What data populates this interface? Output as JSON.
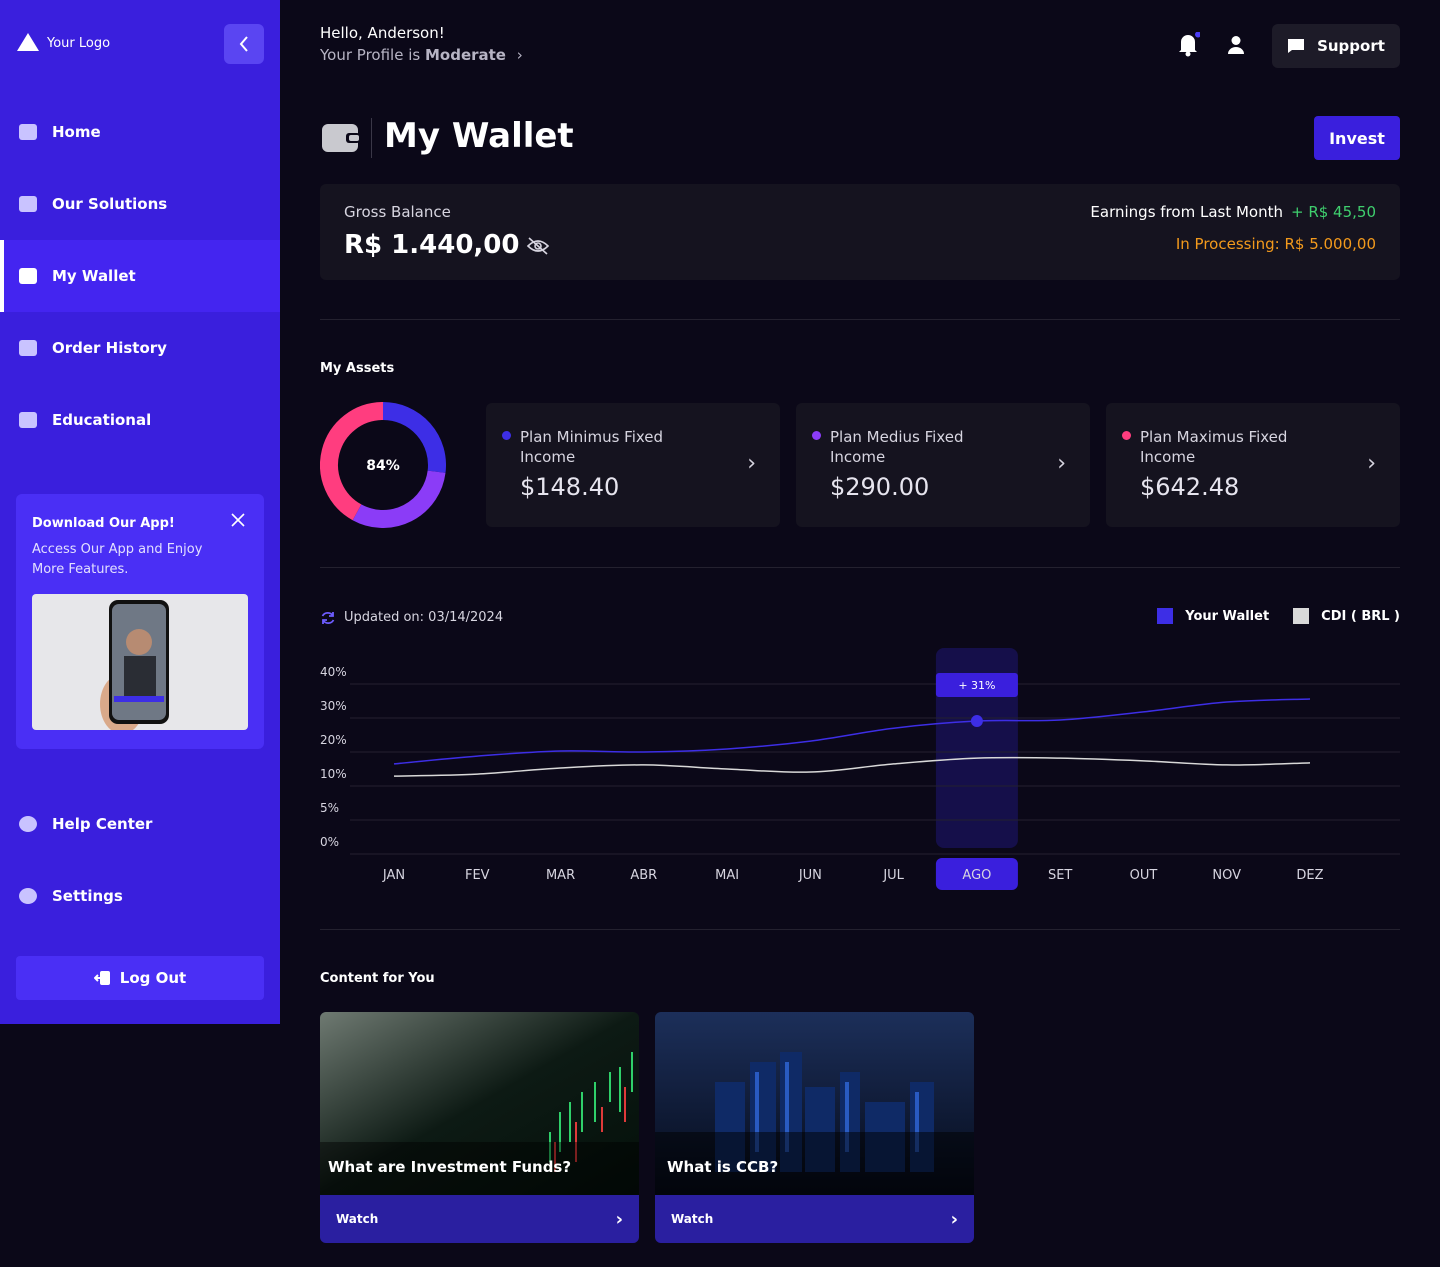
{
  "sidebar": {
    "logo": "Your Logo",
    "nav": [
      "Home",
      "Our Solutions",
      "My Wallet",
      "Order History",
      "Educational"
    ],
    "active": 2,
    "promo": {
      "title": "Download Our App!",
      "text": "Access Our App and Enjoy More Features."
    },
    "bottom_nav": [
      "Help Center",
      "Settings"
    ],
    "logout": "Log Out"
  },
  "header": {
    "greeting": "Hello, Anderson!",
    "profile_prefix": "Your Profile is",
    "profile": "Moderate",
    "support": "Support"
  },
  "wallet": {
    "title": "My Wallet",
    "invest": "Invest",
    "gross_label": "Gross Balance",
    "gross": "R$ 1.440,00",
    "earnings_label": "Earnings from Last Month",
    "earnings": "+ R$ 45,50",
    "processing": "In Processing: R$ 5.000,00"
  },
  "assets": {
    "title": "My Assets",
    "plans": [
      {
        "name": "Plan Minimus Fixed Income",
        "amount": "$148.40",
        "color": "#3d2ee6"
      },
      {
        "name": "Plan Medius Fixed Income",
        "amount": "$290.00",
        "color": "#8b3cf7"
      },
      {
        "name": "Plan Maximus Fixed Income",
        "amount": "$642.48",
        "color": "#ff3d7f"
      }
    ]
  },
  "chart_data": [
    {
      "type": "donut",
      "center_label": "84%",
      "values": [
        27,
        31,
        42
      ],
      "colors": [
        "#3d2ee6",
        "#8b3cf7",
        "#ff3d7f"
      ]
    },
    {
      "type": "line",
      "updated": "Updated on: 03/14/2024",
      "annotation": "+ 31%",
      "highlight": 7,
      "categories": [
        "JAN",
        "FEV",
        "MAR",
        "ABR",
        "MAI",
        "JUN",
        "JUL",
        "AGO",
        "SET",
        "OUT",
        "NOV",
        "DEZ"
      ],
      "series": [
        {
          "name": "Your Wallet",
          "color": "#3d2ee6",
          "values": [
            16.5,
            18.8,
            20.3,
            20,
            20.9,
            23.2,
            27,
            29.1,
            29.4,
            31.8,
            34.7,
            35.6
          ]
        },
        {
          "name": "CDI ( BRL )",
          "color": "#d9d9d9",
          "values": [
            12.9,
            13.5,
            15.3,
            16.2,
            15,
            14.1,
            16.5,
            18.2,
            18.2,
            17.4,
            16.2,
            16.8
          ]
        }
      ],
      "ylim": [
        0,
        40
      ],
      "yticks": [
        {
          "value": 0,
          "label": "0%"
        },
        {
          "value": 5,
          "label": "5%"
        },
        {
          "value": 10,
          "label": "10%"
        },
        {
          "value": 20,
          "label": "20%"
        },
        {
          "value": 30,
          "label": "30%"
        },
        {
          "value": 40,
          "label": "40%"
        }
      ],
      "grid": true
    }
  ],
  "content": {
    "title": "Content for You",
    "cards": [
      {
        "title": "What are Investment Funds?",
        "action": "Watch"
      },
      {
        "title": "What is CCB?",
        "action": "Watch"
      }
    ]
  }
}
